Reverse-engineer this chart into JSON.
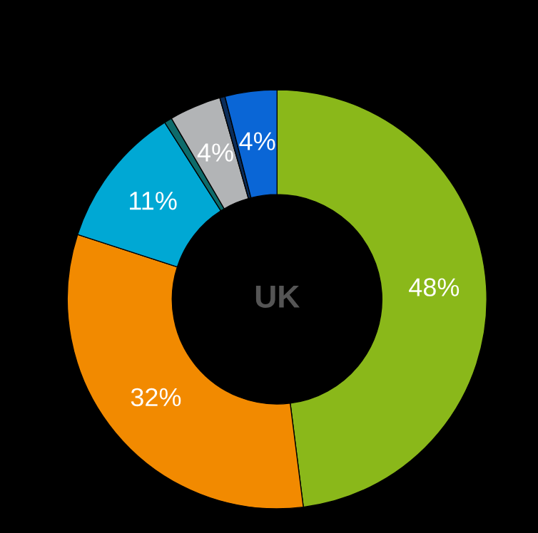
{
  "chart_data": {
    "type": "donut",
    "categories": [
      null,
      null,
      null,
      null,
      null,
      null,
      null
    ],
    "values": [
      48,
      32,
      11,
      0.6,
      4,
      0.4,
      4
    ],
    "colors": [
      "#8ab81a",
      "#f28a00",
      "#00a8d4",
      "#0e6b6b",
      "#b2b4b6",
      "#0b2d5a",
      "#0a66d6"
    ],
    "value_labels": [
      "48%",
      "32%",
      "11%",
      null,
      "4%",
      null,
      "4%"
    ],
    "annotations": [
      "UK"
    ]
  }
}
